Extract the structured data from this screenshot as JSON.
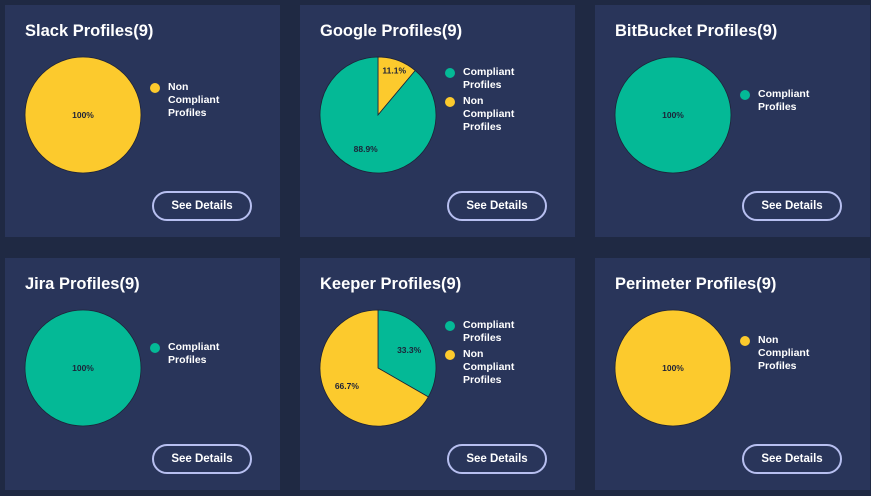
{
  "colors": {
    "compliant": "#04b996",
    "non_compliant": "#fcca2d",
    "card": "#29355a",
    "background": "#1f2943"
  },
  "cards": [
    {
      "title": "Slack Profiles(9)",
      "legend": [
        {
          "label": "Non Compliant Profiles",
          "color": "#fcca2d"
        }
      ],
      "chart_data": {
        "type": "pie",
        "slices": [
          {
            "label": "Non Compliant Profiles",
            "value": 100,
            "display": "100%",
            "color": "#fcca2d"
          }
        ]
      },
      "button_label": "See Details"
    },
    {
      "title": "Google Profiles(9)",
      "legend": [
        {
          "label": "Compliant Profiles",
          "color": "#04b996"
        },
        {
          "label": "Non Compliant Profiles",
          "color": "#fcca2d"
        }
      ],
      "chart_data": {
        "type": "pie",
        "slices": [
          {
            "label": "Non Compliant Profiles",
            "value": 11.1,
            "display": "11.1%",
            "color": "#fcca2d"
          },
          {
            "label": "Compliant Profiles",
            "value": 88.9,
            "display": "88.9%",
            "color": "#04b996"
          }
        ]
      },
      "button_label": "See Details"
    },
    {
      "title": "BitBucket Profiles(9)",
      "legend": [
        {
          "label": "Compliant Profiles",
          "color": "#04b996"
        }
      ],
      "chart_data": {
        "type": "pie",
        "slices": [
          {
            "label": "Compliant Profiles",
            "value": 100,
            "display": "100%",
            "color": "#04b996"
          }
        ]
      },
      "button_label": "See Details"
    },
    {
      "title": "Jira Profiles(9)",
      "legend": [
        {
          "label": "Compliant Profiles",
          "color": "#04b996"
        }
      ],
      "chart_data": {
        "type": "pie",
        "slices": [
          {
            "label": "Compliant Profiles",
            "value": 100,
            "display": "100%",
            "color": "#04b996"
          }
        ]
      },
      "button_label": "See Details"
    },
    {
      "title": "Keeper Profiles(9)",
      "legend": [
        {
          "label": "Compliant Profiles",
          "color": "#04b996"
        },
        {
          "label": "Non Compliant Profiles",
          "color": "#fcca2d"
        }
      ],
      "chart_data": {
        "type": "pie",
        "slices": [
          {
            "label": "Compliant Profiles",
            "value": 33.3,
            "display": "33.3%",
            "color": "#04b996"
          },
          {
            "label": "Non Compliant Profiles",
            "value": 66.7,
            "display": "66.7%",
            "color": "#fcca2d"
          }
        ]
      },
      "button_label": "See Details"
    },
    {
      "title": "Perimeter Profiles(9)",
      "legend": [
        {
          "label": "Non Compliant Profiles",
          "color": "#fcca2d"
        }
      ],
      "chart_data": {
        "type": "pie",
        "slices": [
          {
            "label": "Non Compliant Profiles",
            "value": 100,
            "display": "100%",
            "color": "#fcca2d"
          }
        ]
      },
      "button_label": "See Details"
    }
  ]
}
